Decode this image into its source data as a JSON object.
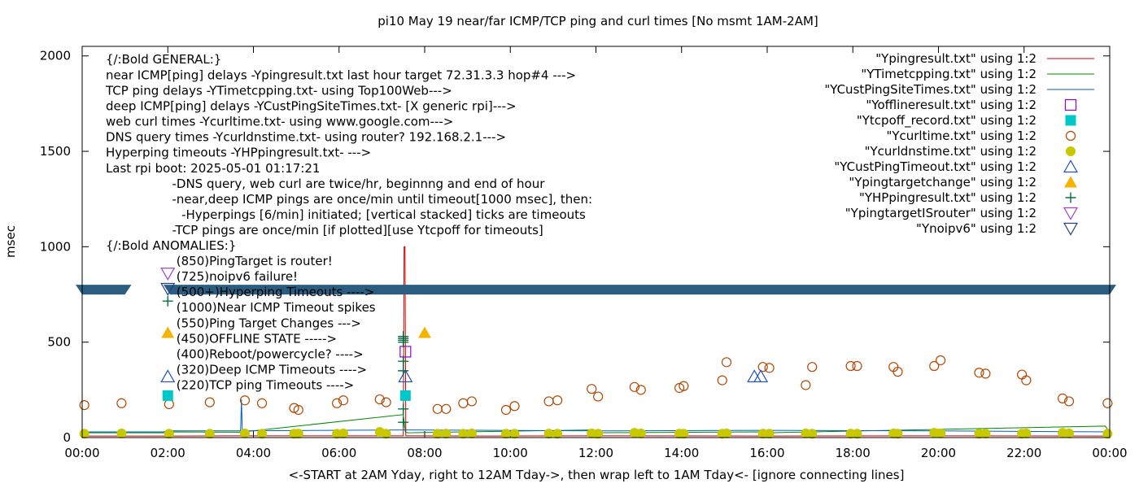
{
  "chart_data": {
    "type": "scatter",
    "title": "pi10 May 19  near/far ICMP/TCP ping and curl times [No msmt 1AM-2AM]",
    "xlabel": "<-START at 2AM Yday, right to 12AM Tday->, then wrap left to 1AM Tday<- [ignore connecting lines]",
    "ylabel": "msec",
    "x_unit": "hours",
    "xlim": [
      0,
      24
    ],
    "ylim": [
      0,
      2050
    ],
    "x_ticks": [
      {
        "v": 0,
        "label": "00:00"
      },
      {
        "v": 2,
        "label": "02:00"
      },
      {
        "v": 4,
        "label": "04:00"
      },
      {
        "v": 6,
        "label": "06:00"
      },
      {
        "v": 8,
        "label": "08:00"
      },
      {
        "v": 10,
        "label": "10:00"
      },
      {
        "v": 12,
        "label": "12:00"
      },
      {
        "v": 14,
        "label": "14:00"
      },
      {
        "v": 16,
        "label": "16:00"
      },
      {
        "v": 18,
        "label": "18:00"
      },
      {
        "v": 20,
        "label": "20:00"
      },
      {
        "v": 22,
        "label": "22:00"
      },
      {
        "v": 24,
        "label": "00:00"
      }
    ],
    "y_ticks": [
      {
        "v": 0,
        "label": "0"
      },
      {
        "v": 500,
        "label": "500"
      },
      {
        "v": 1000,
        "label": "1000"
      },
      {
        "v": 1500,
        "label": "1500"
      },
      {
        "v": 2000,
        "label": "2000"
      }
    ],
    "legend_position": "top-right",
    "annotations": [
      {
        "x": 0.55,
        "y": 1960,
        "text": "{/:Bold GENERAL:}"
      },
      {
        "x": 0.55,
        "y": 1878,
        "text": "near ICMP[ping] delays -Ypingresult.txt last hour target 72.31.3.3 hop#4 --->"
      },
      {
        "x": 0.55,
        "y": 1797,
        "text": "TCP ping delays -YTimetcpping.txt- using Top100Web--->"
      },
      {
        "x": 0.55,
        "y": 1716,
        "text": "deep ICMP[ping] delays -YCustPingSiteTimes.txt- [X generic rpi]--->"
      },
      {
        "x": 0.55,
        "y": 1634,
        "text": "web curl times -Ycurltime.txt- using www.google.com--->"
      },
      {
        "x": 0.55,
        "y": 1553,
        "text": "DNS query times -Ycurldnstime.txt- using router? 192.168.2.1--->"
      },
      {
        "x": 0.55,
        "y": 1472,
        "text": "Hyperping timeouts -YHPpingresult.txt- --->"
      },
      {
        "x": 0.55,
        "y": 1390,
        "text": "Last rpi boot: 2025-05-01 01:17:21"
      },
      {
        "x": 2.1,
        "y": 1309,
        "text": "-DNS query, web curl are twice/hr, beginnng and end of hour"
      },
      {
        "x": 2.1,
        "y": 1228,
        "text": "-near,deep ICMP pings are once/min until timeout[1000 msec], then:"
      },
      {
        "x": 2.32,
        "y": 1147,
        "text": "-Hyperpings [6/min] initiated; [vertical stacked] ticks are timeouts"
      },
      {
        "x": 2.1,
        "y": 1065,
        "text": "-TCP pings are once/min [if plotted][use Ytcpoff for timeouts]"
      },
      {
        "x": 0.55,
        "y": 984,
        "text": "{/:Bold ANOMALIES:}"
      },
      {
        "x": 2.2,
        "y": 903,
        "text": "(850)PingTarget is router!"
      },
      {
        "x": 2.2,
        "y": 822,
        "text": "(725)noipv6 failure!"
      },
      {
        "x": 2.2,
        "y": 741,
        "text": "(500+)Hyperping Timeouts ---->"
      },
      {
        "x": 2.2,
        "y": 660,
        "text": "(1000)Near ICMP Timeout spikes"
      },
      {
        "x": 2.2,
        "y": 578,
        "text": "(550)Ping Target Changes --->"
      },
      {
        "x": 2.2,
        "y": 497,
        "text": "(450)OFFLINE STATE ----->"
      },
      {
        "x": 2.2,
        "y": 415,
        "text": "(400)Reboot/powercycle? ---->"
      },
      {
        "x": 2.2,
        "y": 334,
        "text": "(320)Deep ICMP Timeouts ---->"
      },
      {
        "x": 2.2,
        "y": 253,
        "text": "(220)TCP ping Timeouts ---->"
      }
    ],
    "anomaly_icons": [
      {
        "series": "\"YpingtargetISrouter\" using 1:2",
        "x": 2.0,
        "y": 860
      },
      {
        "series": "\"Ynoipv6\" using 1:2",
        "x": 2.0,
        "y": 780
      },
      {
        "series": "\"YHPpingresult.txt\" using 1:2",
        "x": 2.0,
        "y": 715
      },
      {
        "series": "\"Ypingtargetchange\" using 1:2",
        "x": 2.0,
        "y": 550
      },
      {
        "series": "\"YCustPingTimeout.txt\" using 1:2",
        "x": 2.0,
        "y": 320
      },
      {
        "series": "\"Ytcpoff_record.txt\" using 1:2",
        "x": 2.0,
        "y": 220
      }
    ],
    "band": {
      "y": 775,
      "gap": [
        1.15,
        1.9
      ],
      "color": "#2a5d80"
    },
    "series": [
      {
        "name": "\"Ypingresult.txt\" using 1:2",
        "style": "line",
        "color": "#cc0000",
        "x": [
          0,
          2.0,
          2.05,
          3.5,
          7.5,
          7.52,
          7.54,
          7.56,
          9.5,
          12,
          16,
          20,
          24
        ],
        "y": [
          8,
          8,
          8,
          9,
          9,
          1000,
          1000,
          9,
          8,
          9,
          8,
          9,
          8
        ]
      },
      {
        "name": "\"YTimetcpping.txt\" using 1:2",
        "style": "line",
        "color": "#008800",
        "x": [
          0,
          1.0,
          1.9,
          2.0,
          3.7,
          7.5,
          7.55,
          7.6,
          11.9,
          12.0,
          15.9,
          16.0,
          23.9,
          24
        ],
        "y": [
          25,
          25,
          25,
          30,
          28,
          120,
          30,
          25,
          40,
          25,
          30,
          25,
          60,
          25
        ]
      },
      {
        "name": "\"YCustPingSiteTimes.txt\" using 1:2",
        "style": "line",
        "color": "#005fbf",
        "x": [
          0,
          1.0,
          1.9,
          2.0,
          3.7,
          3.72,
          3.74,
          7.5,
          12,
          16,
          20,
          24
        ],
        "y": [
          30,
          30,
          30,
          35,
          35,
          200,
          35,
          40,
          35,
          38,
          35,
          30
        ]
      },
      {
        "name": "\"Yofflineresult.txt\" using 1:2",
        "style": "square-open",
        "color": "#9400d3",
        "x": [
          7.55
        ],
        "y": [
          450
        ]
      },
      {
        "name": "\"Ytcpoff_record.txt\" using 1:2",
        "style": "square-filled",
        "color": "#00c8c8",
        "x": [
          7.55
        ],
        "y": [
          220
        ]
      },
      {
        "name": "\"Ycurltime.txt\" using 1:2",
        "style": "circle-open",
        "color": "#b34700",
        "x": [
          0.05,
          0.92,
          2.03,
          2.98,
          3.8,
          4.2,
          4.95,
          5.05,
          5.95,
          6.1,
          6.95,
          7.1,
          8.3,
          8.5,
          8.9,
          9.1,
          9.9,
          10.1,
          10.9,
          11.1,
          11.9,
          12.05,
          12.9,
          13.05,
          13.95,
          14.05,
          14.95,
          15.05,
          15.9,
          16.05,
          16.9,
          17.05,
          17.95,
          18.1,
          18.95,
          19.05,
          19.9,
          20.05,
          20.95,
          21.1,
          21.95,
          22.05,
          22.9,
          23.05,
          23.95
        ],
        "y": [
          170,
          180,
          175,
          185,
          195,
          180,
          155,
          145,
          180,
          195,
          200,
          185,
          150,
          150,
          180,
          190,
          145,
          165,
          190,
          195,
          255,
          215,
          265,
          250,
          260,
          270,
          300,
          395,
          370,
          365,
          275,
          370,
          375,
          375,
          370,
          345,
          375,
          405,
          340,
          335,
          330,
          300,
          205,
          190,
          180
        ]
      },
      {
        "name": "\"Ycurldnstime.txt\" using 1:2",
        "style": "circle-filled",
        "color": "#c8c800",
        "x": [
          0.05,
          0.92,
          2.03,
          2.98,
          3.8,
          4.2,
          4.95,
          5.05,
          5.95,
          6.1,
          6.95,
          7.1,
          8.3,
          8.5,
          8.9,
          9.1,
          9.9,
          10.1,
          10.9,
          11.1,
          11.9,
          12.05,
          12.9,
          13.05,
          13.95,
          14.05,
          14.95,
          15.05,
          15.9,
          16.05,
          16.9,
          17.05,
          17.95,
          18.1,
          18.95,
          19.05,
          19.9,
          20.05,
          20.95,
          21.1,
          21.95,
          22.05,
          22.9,
          23.05,
          23.95
        ],
        "y": [
          20,
          22,
          20,
          20,
          22,
          20,
          20,
          21,
          20,
          22,
          30,
          20,
          20,
          21,
          20,
          22,
          20,
          20,
          21,
          20,
          22,
          20,
          25,
          22,
          21,
          20,
          20,
          22,
          21,
          20,
          22,
          20,
          21,
          20,
          22,
          20,
          25,
          22,
          20,
          21,
          20,
          22,
          25,
          22,
          20
        ]
      },
      {
        "name": "\"YCustPingTimeout.txt\" using 1:2",
        "style": "triangle-up-open",
        "color": "#2050c8",
        "x": [
          7.55,
          15.7,
          15.85
        ],
        "y": [
          320,
          320,
          320
        ]
      },
      {
        "name": "\"Ypingtargetchange\" using 1:2",
        "style": "triangle-up-filled",
        "color": "#f4b400",
        "x": [
          8.0
        ],
        "y": [
          550
        ]
      },
      {
        "name": "\"YHPpingresult.txt\" using 1:2",
        "style": "plus",
        "color": "#007040",
        "x": [
          7.5,
          7.5,
          7.5,
          7.5,
          7.5,
          7.5,
          7.5,
          7.5
        ],
        "y": [
          500,
          510,
          520,
          530,
          400,
          350,
          150,
          80
        ]
      },
      {
        "name": "\"YpingtargetISrouter\" using 1:2",
        "style": "triangle-down-open",
        "color": "#a040d0",
        "x": [],
        "y": []
      },
      {
        "name": "\"Ynoipv6\" using 1:2",
        "style": "triangle-down-open",
        "color": "#204080",
        "x": [],
        "y": []
      }
    ]
  }
}
